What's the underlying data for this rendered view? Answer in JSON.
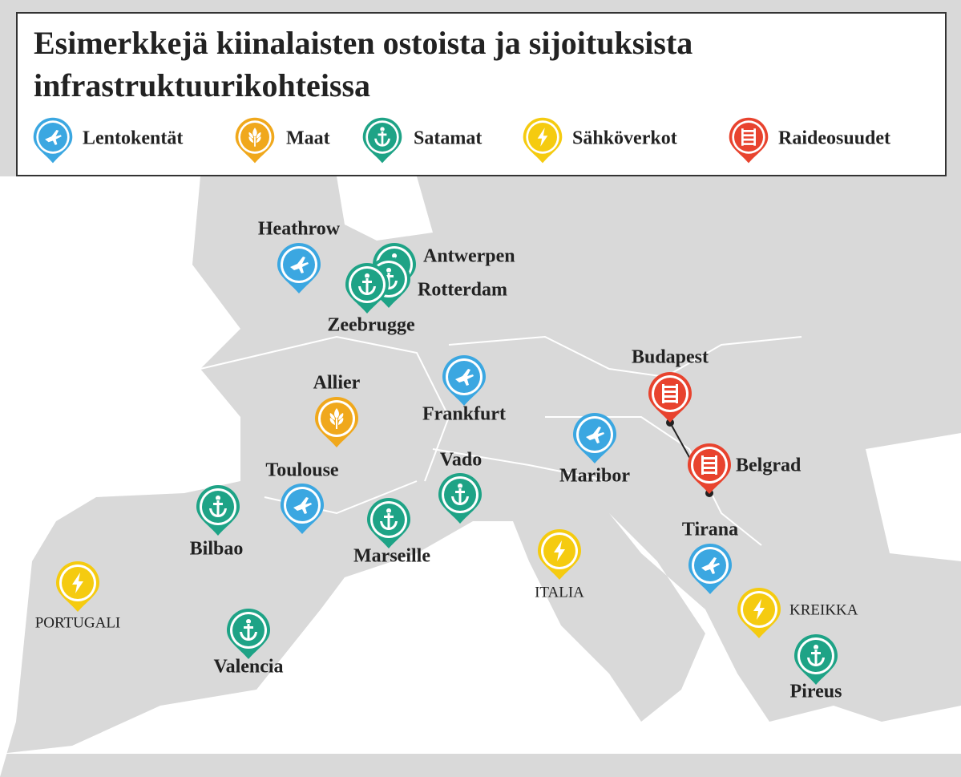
{
  "header": {
    "title": "Esimerkkejä kiinalaisten ostoista ja sijoituksista infrastruktuurikohteissa"
  },
  "legend": [
    {
      "label": "Lentokentät",
      "color": "#3ba7e1",
      "places": [
        "Heathrow",
        "Frankfurt",
        "Toulouse",
        "Maribor",
        "Tirana"
      ]
    },
    {
      "label": "Maat",
      "color": "#f0a81c",
      "places": [
        "Allier"
      ]
    },
    {
      "label": "Satamat",
      "color": "#1ea386",
      "places": [
        "Antwerpen",
        "Rotterdam",
        "Zeebrugge",
        "Vado",
        "Marseille",
        "Bilbao",
        "Valencia",
        "Pireus"
      ]
    },
    {
      "label": "Sähköverkot",
      "color": "#f5cb10",
      "places": [
        "PORTUGALI",
        "ITALIA",
        "KREIKKA"
      ]
    },
    {
      "label": "Raideosuudet",
      "color": "#e8432e",
      "places": [
        "Budapest",
        "Belgrad"
      ]
    }
  ]
}
